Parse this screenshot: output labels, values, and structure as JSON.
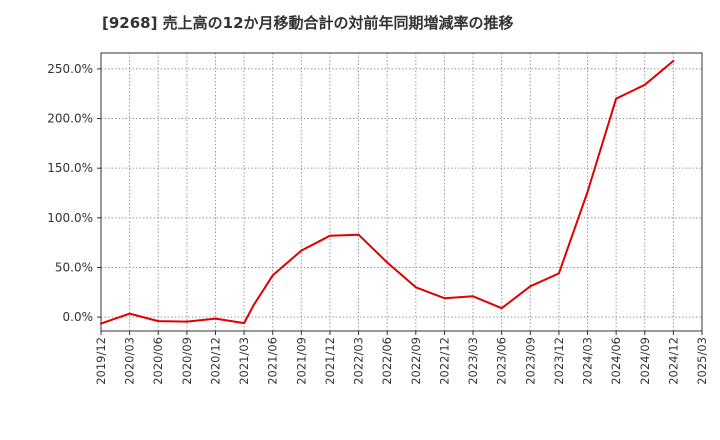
{
  "chart_data": {
    "type": "line",
    "title": "[9268]  売上高の12か月移動合計の対前年同期増減率の推移",
    "xlabel": "",
    "ylabel": "",
    "ylim": [
      -14,
      266
    ],
    "grid": true,
    "y_ticks": [
      0,
      50,
      100,
      150,
      200,
      250
    ],
    "y_tick_labels": [
      "0.0%",
      "50.0%",
      "100.0%",
      "150.0%",
      "200.0%",
      "250.0%"
    ],
    "x_tick_labels": [
      "2019/12",
      "2020/03",
      "2020/06",
      "2020/09",
      "2020/12",
      "2021/03",
      "2021/06",
      "2021/09",
      "2021/12",
      "2022/03",
      "2022/06",
      "2022/09",
      "2022/12",
      "2023/03",
      "2023/06",
      "2023/09",
      "2023/12",
      "2024/03",
      "2024/06",
      "2024/09",
      "2024/12",
      "2025/03"
    ],
    "series": [
      {
        "name": "対前年同期増減率",
        "color": "#e00000",
        "x": [
          "2019/12",
          "2020/03",
          "2020/06",
          "2020/09",
          "2020/12",
          "2021/03",
          "2021/04",
          "2021/06",
          "2021/09",
          "2021/12",
          "2022/03",
          "2022/06",
          "2022/09",
          "2022/12",
          "2023/03",
          "2023/06",
          "2023/09",
          "2023/12",
          "2024/03",
          "2024/06",
          "2024/09",
          "2024/12"
        ],
        "values": [
          -6.5,
          3.5,
          -4,
          -4.5,
          -1.5,
          -6,
          12,
          42,
          67,
          82,
          83,
          55,
          30,
          19,
          21,
          9,
          31,
          44,
          126,
          220,
          234,
          258
        ]
      }
    ]
  }
}
